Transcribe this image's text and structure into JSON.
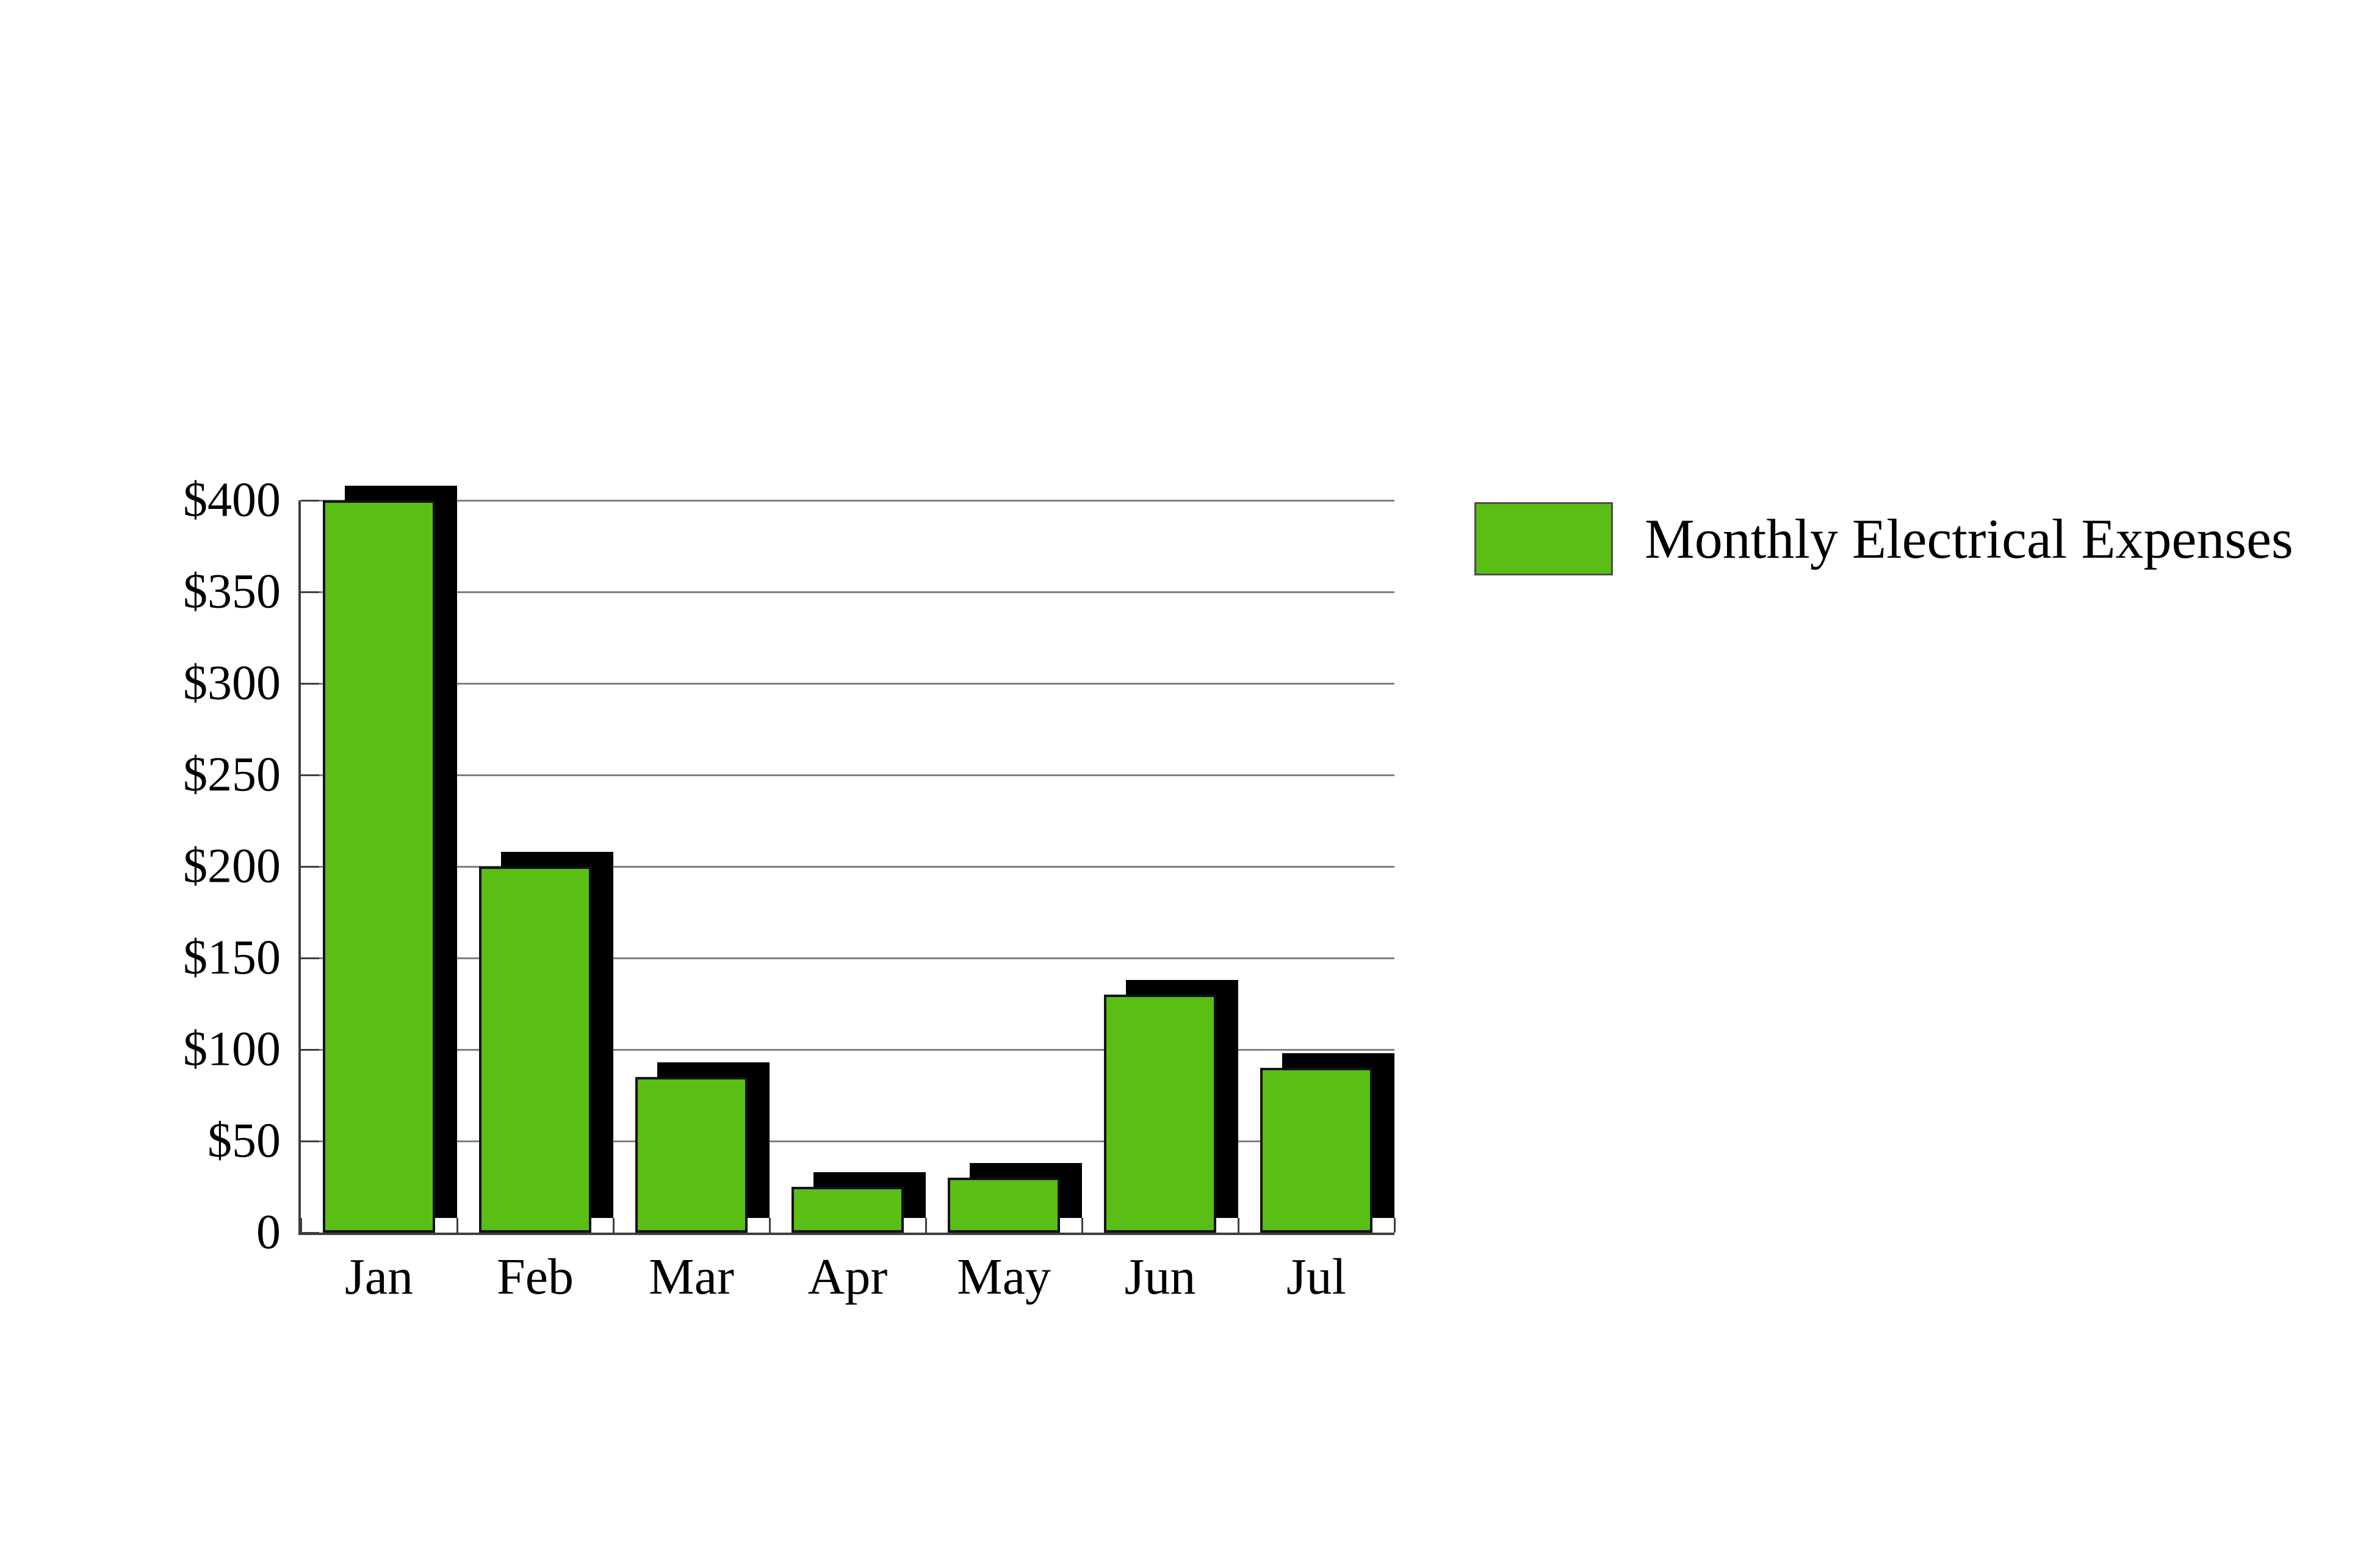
{
  "chart_data": {
    "type": "bar",
    "title": "",
    "categories": [
      "Jan",
      "Feb",
      "Mar",
      "Apr",
      "May",
      "Jun",
      "Jul"
    ],
    "series": [
      {
        "name": "Monthly Electrical Expenses",
        "values": [
          400,
          200,
          85,
          25,
          30,
          130,
          90
        ]
      }
    ],
    "xlabel": "",
    "ylabel": "",
    "y_tick_labels": [
      "$400",
      "$350",
      "$300",
      "$250",
      "$200",
      "$150",
      "$100",
      "$50",
      "0"
    ],
    "y_tick_values": [
      400,
      350,
      300,
      250,
      200,
      150,
      100,
      50,
      0
    ],
    "ylim": [
      0,
      400
    ],
    "grid": "horizontal",
    "bar_style": "flat with black drop shadow offset up-right",
    "legend_position": "outside top-right",
    "colors": {
      "bar_fill": "#5abe15",
      "bar_border": "#111111",
      "shadow": "#000000",
      "grid_line": "#808080",
      "axis_line": "#3f3f3f",
      "background": "#ffffff"
    }
  },
  "legend": {
    "label": "Monthly Electrical Expenses"
  }
}
